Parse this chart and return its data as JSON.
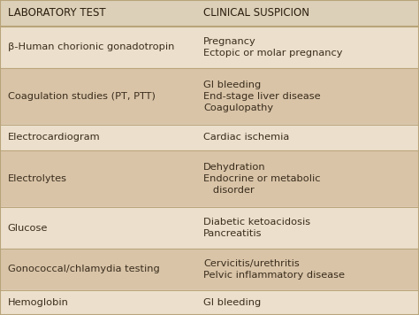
{
  "header": [
    "LABORATORY TEST",
    "CLINICAL SUSPICION"
  ],
  "rows": [
    {
      "lab": "β-Human chorionic gonadotropin",
      "clinical": "Pregnancy\nEctopic or molar pregnancy",
      "shaded": false,
      "line_count": 2
    },
    {
      "lab": "Coagulation studies (PT, PTT)",
      "clinical": "GI bleeding\nEnd-stage liver disease\nCoagulopathy",
      "shaded": true,
      "line_count": 3
    },
    {
      "lab": "Electrocardiogram",
      "clinical": "Cardiac ischemia",
      "shaded": false,
      "line_count": 1
    },
    {
      "lab": "Electrolytes",
      "clinical": "Dehydration\nEndocrine or metabolic\n   disorder",
      "shaded": true,
      "line_count": 3
    },
    {
      "lab": "Glucose",
      "clinical": "Diabetic ketoacidosis\nPancreatitis",
      "shaded": false,
      "line_count": 2
    },
    {
      "lab": "Gonococcal/chlamydia testing",
      "clinical": "Cervicitis/urethritis\nPelvic inflammatory disease",
      "shaded": true,
      "line_count": 2
    },
    {
      "lab": "Hemoglobin",
      "clinical": "GI bleeding",
      "shaded": false,
      "line_count": 1
    }
  ],
  "bg_light": "#ece0cc",
  "bg_dark": "#d9c4a8",
  "header_bg": "#ddd0b8",
  "text_color": "#3a2d1c",
  "header_text_color": "#2a1e0e",
  "divider_color": "#b8a47a",
  "col_split": 0.465,
  "header_fontsize": 8.5,
  "row_fontsize": 8.2,
  "figw": 4.74,
  "figh": 3.56,
  "dpi": 100
}
